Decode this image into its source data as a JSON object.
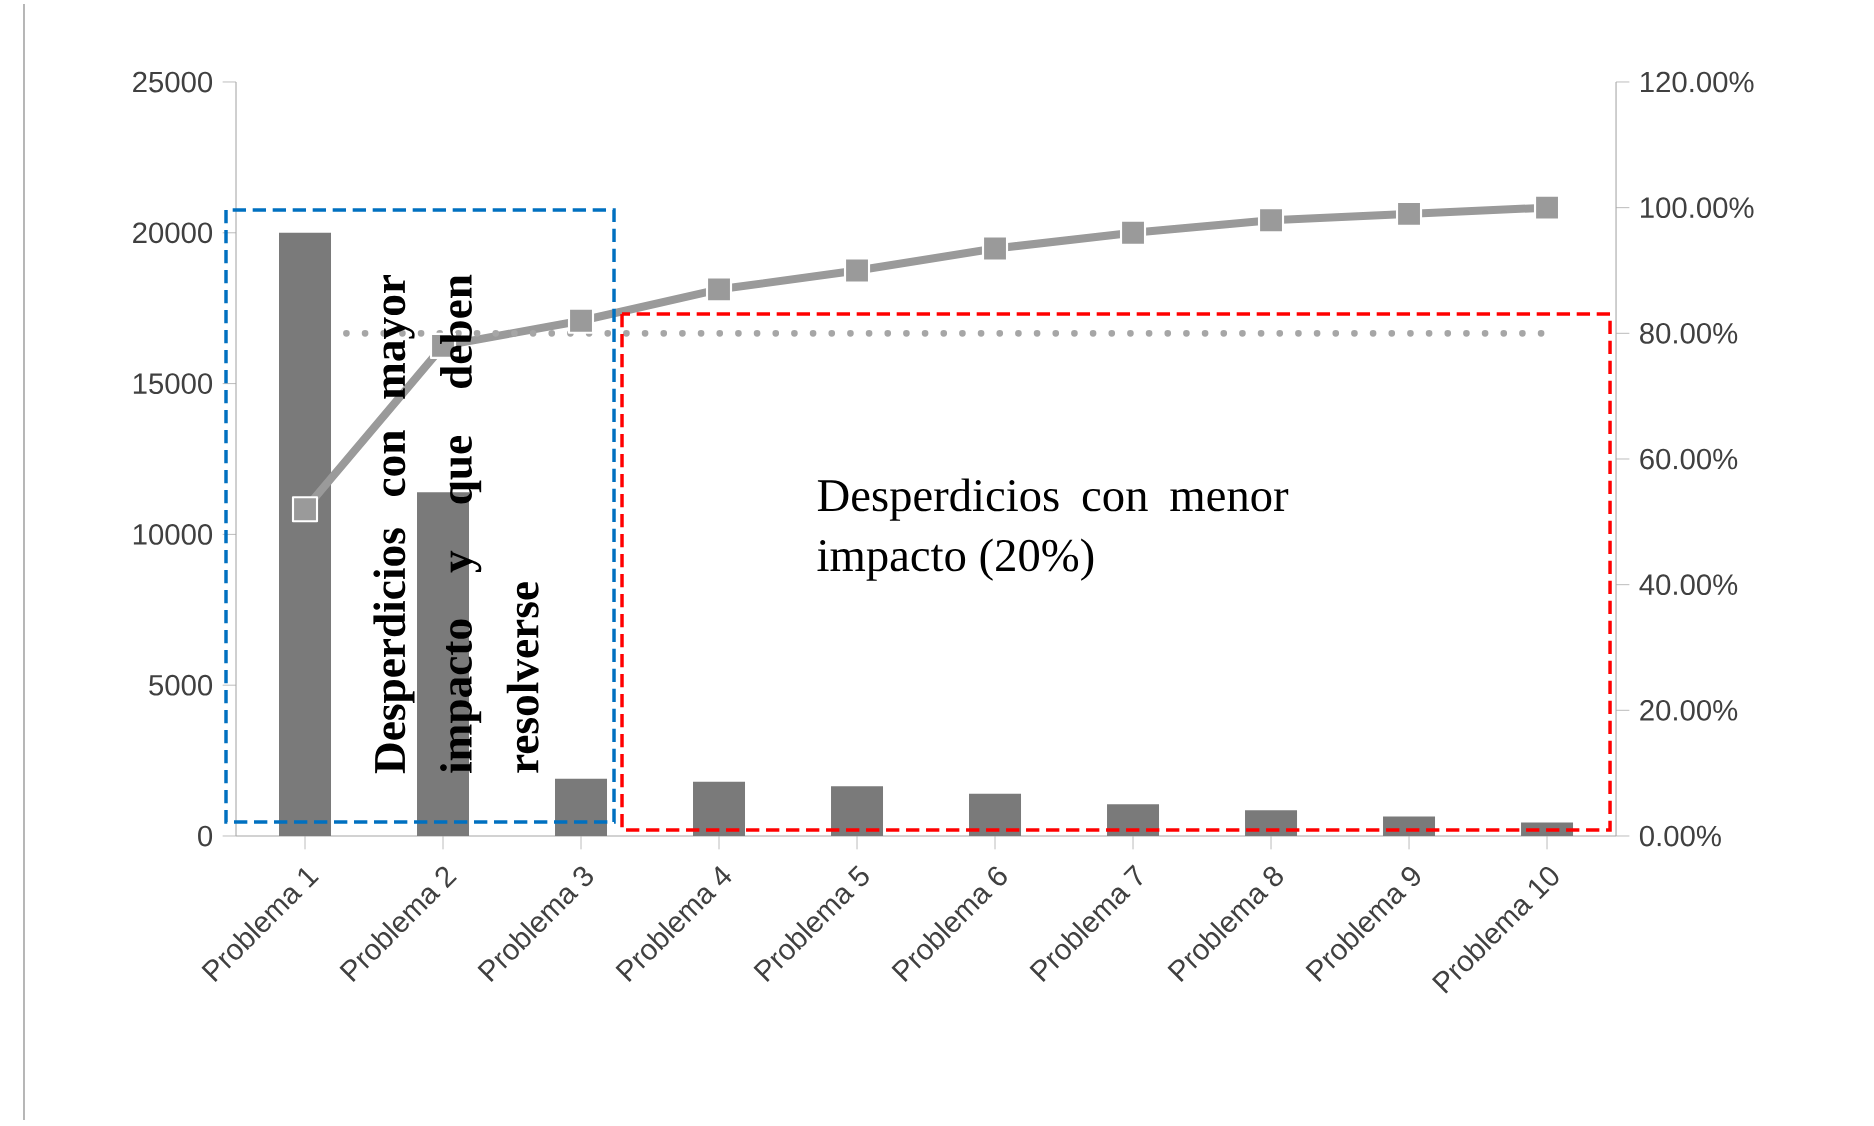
{
  "chart_data": {
    "type": "bar",
    "categories": [
      "Problema 1",
      "Problema 2",
      "Problema 3",
      "Problema 4",
      "Problema 5",
      "Problema 6",
      "Problema 7",
      "Problema 8",
      "Problema 9",
      "Problema 10"
    ],
    "series": [
      {
        "color": "#7a7a7a",
        "values": [
          20000,
          11400,
          1900,
          1800,
          1650,
          1400,
          1050,
          850,
          650,
          450
        ]
      },
      {
        "type": "line",
        "axis": "y2",
        "color": "#9a9a9a",
        "marker": "square",
        "line_style": "solid",
        "values": [
          52,
          78,
          82,
          87,
          90,
          93.5,
          96,
          98,
          99,
          100
        ]
      }
    ],
    "ylim": [
      0,
      25000
    ],
    "yticks": [
      0,
      5000,
      10000,
      15000,
      20000,
      25000
    ],
    "y2lim": [
      0,
      120
    ],
    "y2ticks": [
      {
        "value": 0,
        "label": "0.00%"
      },
      {
        "value": 20,
        "label": "20.00%"
      },
      {
        "value": 40,
        "label": "40.00%"
      },
      {
        "value": 60,
        "label": "60.00%"
      },
      {
        "value": 80,
        "label": "80.00%"
      },
      {
        "value": 100,
        "label": "100.00%"
      },
      {
        "value": 120,
        "label": "120.00%"
      }
    ],
    "ref_lines": [
      {
        "axis": "y2",
        "value": 80,
        "color": "#a6a6a6",
        "line_style": "dotted"
      }
    ],
    "annotations": [
      "Desperdicios con mayor impacto y que deben resolverse",
      "Desperdicios con menor impacto (20%)"
    ],
    "grid": false
  }
}
